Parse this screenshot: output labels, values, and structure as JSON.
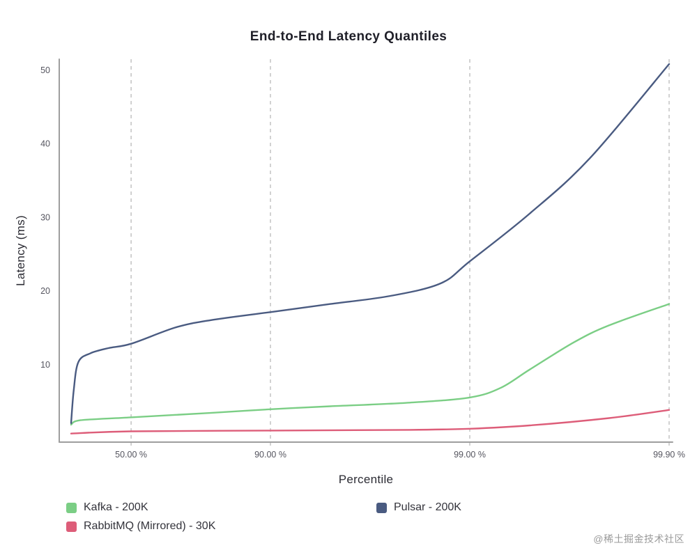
{
  "title": "End-to-End Latency Quantiles",
  "watermark": "@稀土掘金技术社区",
  "chart_data": {
    "type": "line",
    "title": "End-to-End Latency Quantiles",
    "xlabel": "Percentile",
    "ylabel": "Latency (ms)",
    "x_scale": "log-percentile",
    "grid": "vertical-dashed",
    "legend_position": "bottom",
    "ylim": [
      0,
      52
    ],
    "y_ticks": [
      10,
      20,
      30,
      40,
      50
    ],
    "x_ticks": [
      {
        "p": 50,
        "label": "50.00 %"
      },
      {
        "p": 90,
        "label": "90.00 %"
      },
      {
        "p": 99,
        "label": "99.00 %"
      },
      {
        "p": 99.9,
        "label": "99.90 %"
      }
    ],
    "series": [
      {
        "name": "Kafka - 200K",
        "color": "#7BCE85",
        "points": [
          [
            0,
            1.8
          ],
          [
            10,
            2.4
          ],
          [
            50,
            2.8
          ],
          [
            80,
            3.4
          ],
          [
            90,
            3.9
          ],
          [
            95,
            4.3
          ],
          [
            98,
            4.8
          ],
          [
            99,
            5.5
          ],
          [
            99.3,
            6.8
          ],
          [
            99.5,
            9.3
          ],
          [
            99.7,
            13.0
          ],
          [
            99.8,
            15.3
          ],
          [
            99.9,
            18.2
          ]
        ]
      },
      {
        "name": "Pulsar - 200K",
        "color": "#4A5B81",
        "points": [
          [
            0,
            2.0
          ],
          [
            3,
            6.5
          ],
          [
            8,
            10.3
          ],
          [
            20,
            11.5
          ],
          [
            35,
            12.2
          ],
          [
            50,
            12.8
          ],
          [
            70,
            15.0
          ],
          [
            80,
            16.0
          ],
          [
            90,
            17.1
          ],
          [
            95,
            18.2
          ],
          [
            97.5,
            19.3
          ],
          [
            98.6,
            21.0
          ],
          [
            99,
            24.0
          ],
          [
            99.5,
            30.5
          ],
          [
            99.75,
            38.0
          ],
          [
            99.9,
            50.8
          ]
        ]
      },
      {
        "name": "RabbitMQ (Mirrored) - 30K",
        "color": "#DD5D79",
        "points": [
          [
            0,
            0.6
          ],
          [
            50,
            0.9
          ],
          [
            90,
            1.0
          ],
          [
            98,
            1.1
          ],
          [
            99,
            1.25
          ],
          [
            99.5,
            1.7
          ],
          [
            99.8,
            2.7
          ],
          [
            99.9,
            3.8
          ]
        ]
      }
    ]
  },
  "legend": {
    "items": [
      {
        "label": "Kafka - 200K",
        "color": "#7BCE85"
      },
      {
        "label": "Pulsar - 200K",
        "color": "#4A5B81"
      },
      {
        "label": "RabbitMQ (Mirrored) - 30K",
        "color": "#DD5D79"
      }
    ]
  },
  "axis_style": {
    "axis_color": "#9e9e9e",
    "grid_color": "#b3b3b3",
    "tick_label_color": "#55555f"
  }
}
